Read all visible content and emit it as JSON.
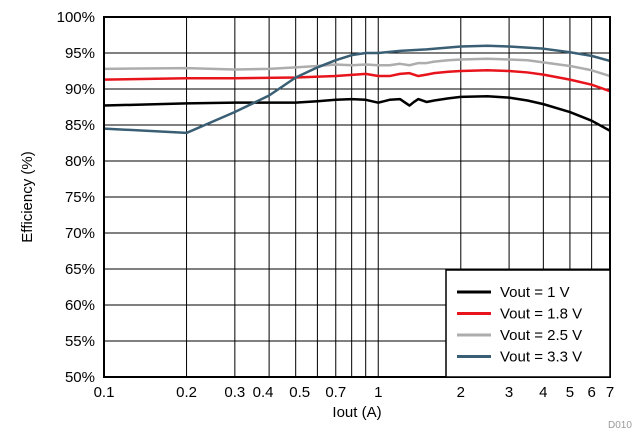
{
  "chart_data": {
    "type": "line",
    "title": "",
    "xlabel": "Iout (A)",
    "ylabel": "Efficiency (%)",
    "x_scale": "log",
    "xlim": [
      0.1,
      7
    ],
    "ylim": [
      50,
      100
    ],
    "grid": true,
    "legend_position": "bottom-right",
    "x_ticks": [
      {
        "value": 0.1,
        "label": "0.1"
      },
      {
        "value": 0.2,
        "label": "0.2"
      },
      {
        "value": 0.3,
        "label": "0.3"
      },
      {
        "value": 0.4,
        "label": "0.4"
      },
      {
        "value": 0.5,
        "label": "0.5"
      },
      {
        "value": 0.7,
        "label": "0.7"
      },
      {
        "value": 1,
        "label": "1"
      },
      {
        "value": 2,
        "label": "2"
      },
      {
        "value": 3,
        "label": "3"
      },
      {
        "value": 4,
        "label": "4"
      },
      {
        "value": 5,
        "label": "5"
      },
      {
        "value": 6,
        "label": "6"
      },
      {
        "value": 7,
        "label": "7"
      }
    ],
    "x_gridlines": [
      0.2,
      0.3,
      0.4,
      0.5,
      0.6,
      0.7,
      0.8,
      0.9,
      1,
      2,
      3,
      4,
      5,
      6
    ],
    "y_ticks": [
      {
        "value": 50,
        "label": "50%"
      },
      {
        "value": 55,
        "label": "55%"
      },
      {
        "value": 60,
        "label": "60%"
      },
      {
        "value": 65,
        "label": "65%"
      },
      {
        "value": 70,
        "label": "70%"
      },
      {
        "value": 75,
        "label": "75%"
      },
      {
        "value": 80,
        "label": "80%"
      },
      {
        "value": 85,
        "label": "85%"
      },
      {
        "value": 90,
        "label": "90%"
      },
      {
        "value": 95,
        "label": "95%"
      },
      {
        "value": 100,
        "label": "100%"
      }
    ],
    "series": [
      {
        "name": "Vout = 1 V",
        "color": "#000000",
        "x": [
          0.1,
          0.2,
          0.3,
          0.5,
          0.6,
          0.7,
          0.8,
          0.9,
          1.0,
          1.1,
          1.2,
          1.3,
          1.35,
          1.4,
          1.5,
          1.6,
          1.8,
          2.0,
          2.5,
          3.0,
          3.5,
          4.0,
          5.0,
          6.0,
          7.0
        ],
        "y": [
          87.7,
          88.0,
          88.1,
          88.1,
          88.3,
          88.5,
          88.6,
          88.5,
          88.1,
          88.5,
          88.6,
          87.7,
          88.2,
          88.6,
          88.2,
          88.4,
          88.7,
          88.9,
          89.0,
          88.8,
          88.4,
          87.9,
          86.8,
          85.6,
          84.2
        ]
      },
      {
        "name": "Vout = 1.8 V",
        "color": "#e8141c",
        "x": [
          0.1,
          0.2,
          0.3,
          0.5,
          0.7,
          0.9,
          1.0,
          1.1,
          1.2,
          1.3,
          1.4,
          1.5,
          1.6,
          1.8,
          2.0,
          2.5,
          3.0,
          3.5,
          4.0,
          5.0,
          6.0,
          7.0
        ],
        "y": [
          91.3,
          91.5,
          91.5,
          91.6,
          91.8,
          92.1,
          91.8,
          91.8,
          92.1,
          92.2,
          91.8,
          92.0,
          92.2,
          92.4,
          92.5,
          92.6,
          92.5,
          92.3,
          92.0,
          91.3,
          90.6,
          89.7
        ]
      },
      {
        "name": "Vout = 2.5 V",
        "color": "#adadad",
        "x": [
          0.1,
          0.2,
          0.3,
          0.4,
          0.5,
          0.6,
          0.7,
          0.8,
          0.9,
          1.0,
          1.1,
          1.2,
          1.3,
          1.4,
          1.5,
          1.6,
          1.8,
          2.0,
          2.5,
          3.0,
          3.5,
          4.0,
          5.0,
          6.0,
          7.0
        ],
        "y": [
          92.8,
          92.9,
          92.7,
          92.8,
          93.0,
          93.2,
          93.4,
          93.3,
          93.4,
          93.3,
          93.3,
          93.5,
          93.3,
          93.6,
          93.6,
          93.8,
          94.0,
          94.1,
          94.2,
          94.1,
          94.0,
          93.7,
          93.2,
          92.6,
          91.8
        ]
      },
      {
        "name": "Vout = 3.3 V",
        "color": "#3a5f74",
        "x": [
          0.1,
          0.2,
          0.3,
          0.4,
          0.5,
          0.6,
          0.7,
          0.8,
          0.9,
          1.0,
          1.2,
          1.5,
          2.0,
          2.5,
          3.0,
          4.0,
          5.0,
          6.0,
          7.0
        ],
        "y": [
          84.5,
          83.9,
          86.8,
          89.1,
          91.6,
          93.0,
          94.0,
          94.7,
          95.0,
          95.0,
          95.3,
          95.5,
          95.9,
          96.0,
          95.9,
          95.6,
          95.1,
          94.6,
          93.9
        ]
      }
    ],
    "footnote": "D010"
  }
}
